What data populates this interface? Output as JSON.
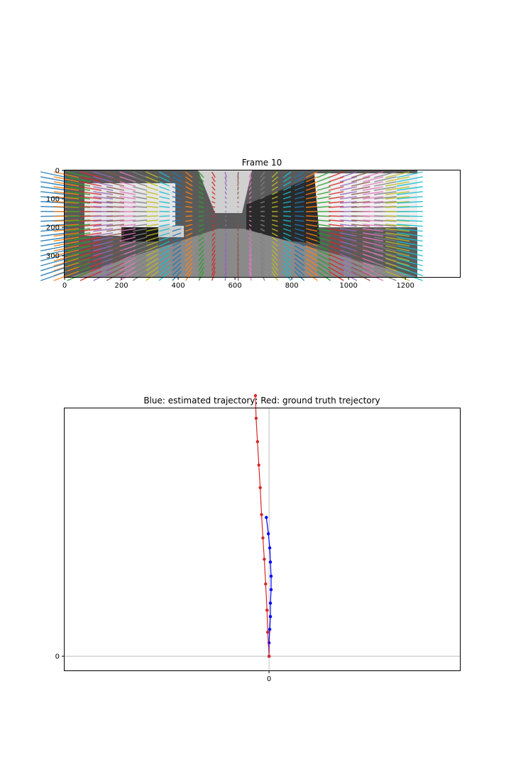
{
  "chart_data": [
    {
      "type": "image",
      "title": "Frame 10",
      "xlim": [
        0,
        1392
      ],
      "ylim": [
        375,
        0
      ],
      "x_ticks": [
        0,
        200,
        400,
        600,
        800,
        1000,
        1200
      ],
      "y_ticks": [
        0,
        100,
        200,
        300
      ],
      "image_extent": {
        "x": [
          0,
          1242
        ],
        "y": [
          0,
          375
        ]
      },
      "overlay": "colored optical-flow feature tracks drawn over a grayscale street-scene camera frame",
      "overlay_colors": [
        "#1f77b4",
        "#ff7f0e",
        "#2ca02c",
        "#d62728",
        "#9467bd",
        "#8c564b",
        "#e377c2",
        "#7f7f7f",
        "#bcbd22",
        "#17becf"
      ]
    },
    {
      "type": "line",
      "title": "Blue: estimated trajectory; Red: ground truth trejectory",
      "x_ticks": [
        0
      ],
      "y_ticks": [
        0
      ],
      "xlim": [
        -15,
        14
      ],
      "ylim": [
        -1,
        17.5
      ],
      "grid": true,
      "series": [
        {
          "color": "#0000ff",
          "marker": "o",
          "x": [
            0.0,
            0.0,
            0.05,
            0.1,
            0.1,
            0.15,
            0.15,
            0.1,
            0.05,
            -0.05,
            -0.2
          ],
          "y": [
            0.0,
            0.95,
            1.9,
            2.8,
            3.75,
            4.7,
            5.65,
            6.65,
            7.65,
            8.65,
            9.8
          ]
        },
        {
          "color": "#d62728",
          "marker": "o",
          "x": [
            0.0,
            -0.1,
            -0.15,
            -0.25,
            -0.35,
            -0.45,
            -0.55,
            -0.65,
            -0.75,
            -0.85,
            -0.95,
            -1.0
          ],
          "y": [
            0.0,
            1.7,
            3.25,
            5.1,
            6.85,
            8.35,
            10.0,
            11.9,
            13.5,
            15.15,
            16.8,
            18.4
          ]
        }
      ]
    }
  ]
}
